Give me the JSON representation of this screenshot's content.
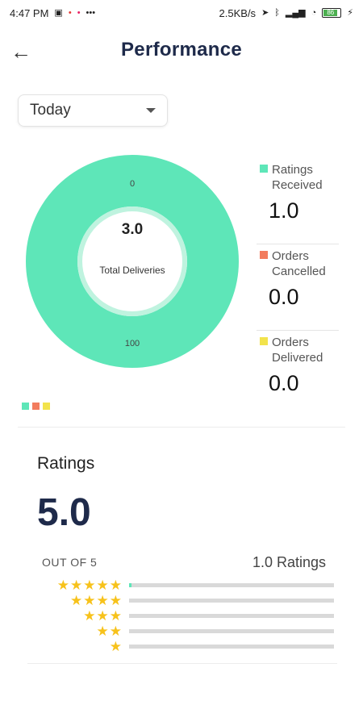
{
  "status_bar": {
    "time": "4:47 PM",
    "speed": "2.5KB/s",
    "battery": "86"
  },
  "header": {
    "title": "Performance",
    "back_icon": "arrow-left-icon"
  },
  "filter": {
    "selected": "Today"
  },
  "donut": {
    "center_value": "3.0",
    "center_label": "Total Deliveries",
    "top_label": "0",
    "bottom_label": "100",
    "color": "#5EE6B8"
  },
  "legend": [
    {
      "label": "Ratings Received",
      "value": "1.0",
      "color": "#5EE6B8"
    },
    {
      "label": "Orders Cancelled",
      "value": "0.0",
      "color": "#F27C5E"
    },
    {
      "label": "Orders Delivered",
      "value": "0.0",
      "color": "#F2E34C"
    }
  ],
  "ratings": {
    "title": "Ratings",
    "score": "5.0",
    "out_of": "OUT OF 5",
    "count": "1.0 Ratings",
    "star_color": "#F7C21B",
    "breakdown": [
      {
        "stars": 5,
        "fraction": 0.01
      },
      {
        "stars": 4,
        "fraction": 0
      },
      {
        "stars": 3,
        "fraction": 0
      },
      {
        "stars": 2,
        "fraction": 0
      },
      {
        "stars": 1,
        "fraction": 0
      }
    ]
  }
}
